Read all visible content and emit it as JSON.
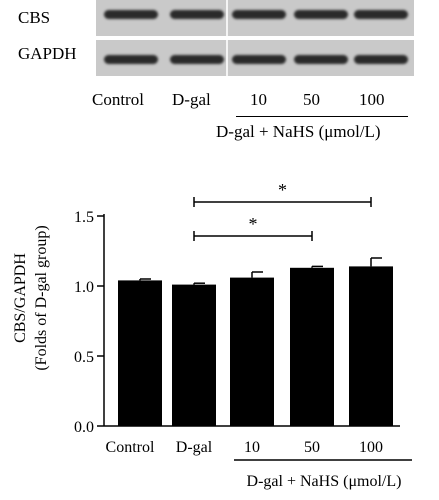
{
  "blot": {
    "rows": [
      {
        "label": "CBS"
      },
      {
        "label": "GAPDH"
      }
    ],
    "lanes": [
      "Control",
      "D-gal",
      "10",
      "50",
      "100"
    ],
    "treatment_label": "D-gal + NaHS (μmol/L)"
  },
  "chart_data": {
    "type": "bar",
    "categories": [
      "Control",
      "D-gal",
      "10",
      "50",
      "100"
    ],
    "values": [
      1.04,
      1.01,
      1.06,
      1.13,
      1.14
    ],
    "errors": [
      0.01,
      0.01,
      0.04,
      0.01,
      0.06
    ],
    "ylabel": [
      "CBS/GAPDH",
      "(Folds of D-gal group)"
    ],
    "ylim": [
      0,
      1.5
    ],
    "yticks": [
      "0.0",
      "0.5",
      "1.0",
      "1.5"
    ],
    "group_label": "D-gal + NaHS (μmol/L)",
    "significance": [
      {
        "from": "D-gal",
        "to": "50",
        "label": "*"
      },
      {
        "from": "D-gal",
        "to": "100",
        "label": "*"
      }
    ],
    "bar_color": "#000000",
    "grid": false
  }
}
